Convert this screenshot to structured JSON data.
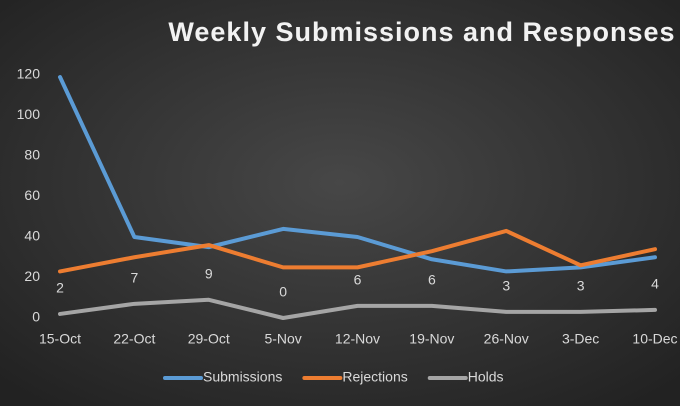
{
  "chart_data": {
    "type": "line",
    "title": "Weekly Submissions and Responses",
    "categories": [
      "15-Oct",
      "22-Oct",
      "29-Oct",
      "5-Nov",
      "12-Nov",
      "19-Nov",
      "26-Nov",
      "3-Dec",
      "10-Dec"
    ],
    "series": [
      {
        "name": "Submissions",
        "color": "#5b9bd5",
        "values": [
          119,
          40,
          35,
          44,
          40,
          29,
          23,
          25,
          30
        ]
      },
      {
        "name": "Rejections",
        "color": "#ed7d31",
        "values": [
          23,
          30,
          36,
          25,
          25,
          33,
          43,
          26,
          34
        ]
      },
      {
        "name": "Holds",
        "color": "#a5a5a5",
        "values": [
          2,
          7,
          9,
          0,
          6,
          6,
          3,
          3,
          4
        ],
        "data_labels": true
      }
    ],
    "ylim": [
      0,
      120
    ],
    "yticks": [
      0,
      20,
      40,
      60,
      80,
      100,
      120
    ],
    "grid": false,
    "legend": "bottom"
  }
}
